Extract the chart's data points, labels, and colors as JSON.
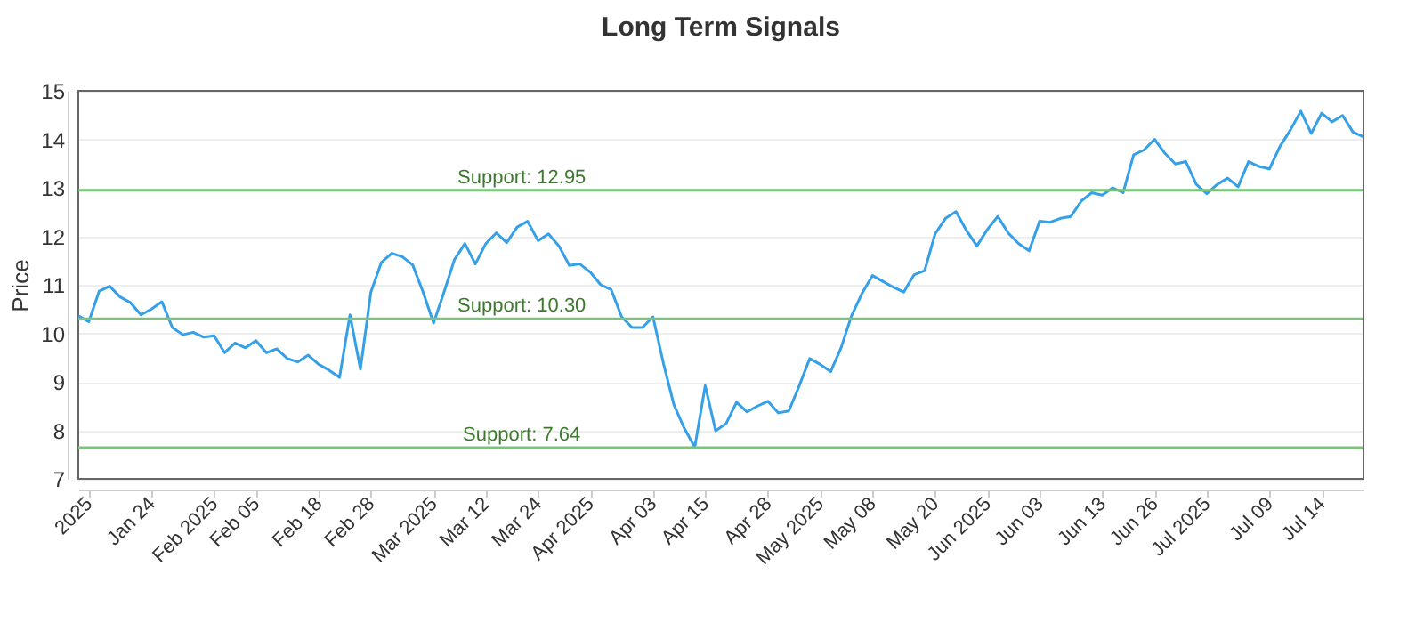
{
  "chart_data": {
    "type": "line",
    "title": "Long Term Signals",
    "ylabel": "Price",
    "categories": [
      null,
      "2025",
      null,
      null,
      null,
      null,
      null,
      "Jan 24",
      null,
      null,
      null,
      null,
      null,
      "Feb 2025",
      null,
      null,
      null,
      "Feb 05",
      null,
      null,
      null,
      null,
      null,
      "Feb 18",
      null,
      null,
      null,
      null,
      "Feb 28",
      null,
      null,
      null,
      null,
      null,
      "Mar 2025",
      null,
      null,
      null,
      null,
      "Mar 12",
      null,
      null,
      null,
      null,
      "Mar 24",
      null,
      null,
      null,
      null,
      "Apr 2025",
      null,
      null,
      null,
      null,
      null,
      "Apr 03",
      null,
      null,
      null,
      null,
      "Apr 15",
      null,
      null,
      null,
      null,
      null,
      "Apr 28",
      null,
      null,
      null,
      null,
      "May 2025",
      null,
      null,
      null,
      null,
      "May 08",
      null,
      null,
      null,
      null,
      null,
      "May 20",
      null,
      null,
      null,
      null,
      "Jun 2025",
      null,
      null,
      null,
      null,
      "Jun 03",
      null,
      null,
      null,
      null,
      null,
      "Jun 13",
      null,
      null,
      null,
      null,
      "Jun 26",
      null,
      null,
      null,
      null,
      "Jul 2025",
      null,
      null,
      null,
      null,
      null,
      "Jul 09",
      null,
      null,
      null,
      null,
      "Jul 14",
      null,
      null,
      null,
      null
    ],
    "series": [
      {
        "color": "#35a0e8",
        "values": [
          10.36,
          10.24,
          10.87,
          10.97,
          10.75,
          10.63,
          10.38,
          10.5,
          10.65,
          10.12,
          9.97,
          10.02,
          9.92,
          9.95,
          9.6,
          9.8,
          9.7,
          9.85,
          9.6,
          9.68,
          9.48,
          9.41,
          9.55,
          9.36,
          9.24,
          9.09,
          10.38,
          9.26,
          10.85,
          11.46,
          11.65,
          11.58,
          11.41,
          10.85,
          10.21,
          10.85,
          11.52,
          11.85,
          11.43,
          11.85,
          12.07,
          11.87,
          12.19,
          12.31,
          11.91,
          12.05,
          11.8,
          11.4,
          11.43,
          11.26,
          11.0,
          10.9,
          10.34,
          10.12,
          10.12,
          10.34,
          9.38,
          8.53,
          8.04,
          7.65,
          8.92,
          7.99,
          8.14,
          8.58,
          8.38,
          8.5,
          8.6,
          8.36,
          8.4,
          8.92,
          9.48,
          9.36,
          9.21,
          9.7,
          10.36,
          10.82,
          11.19,
          11.07,
          10.95,
          10.85,
          11.21,
          11.29,
          12.05,
          12.37,
          12.51,
          12.12,
          11.8,
          12.14,
          12.41,
          12.07,
          11.85,
          11.7,
          12.31,
          12.29,
          12.37,
          12.41,
          12.73,
          12.9,
          12.85,
          13.0,
          12.9,
          13.68,
          13.78,
          14.0,
          13.71,
          13.49,
          13.54,
          13.07,
          12.88,
          13.07,
          13.2,
          13.02,
          13.54,
          13.44,
          13.39,
          13.85,
          14.19,
          14.58,
          14.12,
          14.54,
          14.36,
          14.49,
          14.15,
          14.05
        ]
      }
    ],
    "ylim": [
      7,
      15
    ],
    "yticks": [
      7,
      8,
      9,
      10,
      11,
      12,
      13,
      14,
      15
    ],
    "grid": "y",
    "ref_lines": [
      {
        "axis": "y",
        "value": 12.95,
        "label": "Support: 12.95",
        "color": "#7cc47c"
      },
      {
        "axis": "y",
        "value": 10.3,
        "label": "Support: 10.30",
        "color": "#7cc47c"
      },
      {
        "axis": "y",
        "value": 7.64,
        "label": "Support: 7.64",
        "color": "#7cc47c"
      }
    ]
  }
}
